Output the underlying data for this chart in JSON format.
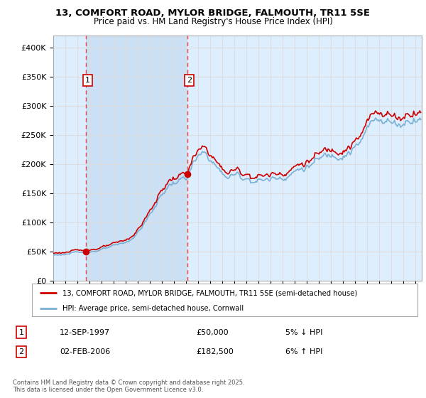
{
  "title1": "13, COMFORT ROAD, MYLOR BRIDGE, FALMOUTH, TR11 5SE",
  "title2": "Price paid vs. HM Land Registry's House Price Index (HPI)",
  "ylim": [
    0,
    420000
  ],
  "xlim_start": 1995.0,
  "xlim_end": 2025.5,
  "yticks": [
    0,
    50000,
    100000,
    150000,
    200000,
    250000,
    300000,
    350000,
    400000
  ],
  "ytick_labels": [
    "£0",
    "£50K",
    "£100K",
    "£150K",
    "£200K",
    "£250K",
    "£300K",
    "£350K",
    "£400K"
  ],
  "sale1_x": 1997.71,
  "sale1_y": 50000,
  "sale2_x": 2006.08,
  "sale2_y": 182500,
  "legend_line1": "13, COMFORT ROAD, MYLOR BRIDGE, FALMOUTH, TR11 5SE (semi-detached house)",
  "legend_line2": "HPI: Average price, semi-detached house, Cornwall",
  "sale1_date": "12-SEP-1997",
  "sale1_price": "£50,000",
  "sale1_pct": "5% ↓ HPI",
  "sale2_date": "02-FEB-2006",
  "sale2_price": "£182,500",
  "sale2_pct": "6% ↑ HPI",
  "footer": "Contains HM Land Registry data © Crown copyright and database right 2025.\nThis data is licensed under the Open Government Licence v3.0.",
  "red_color": "#cc0000",
  "blue_color": "#7ab0d4",
  "bg_color": "#ddeeff",
  "shade_color": "#cce0f5",
  "grid_color": "#dddddd",
  "vline_color": "#ee4444"
}
